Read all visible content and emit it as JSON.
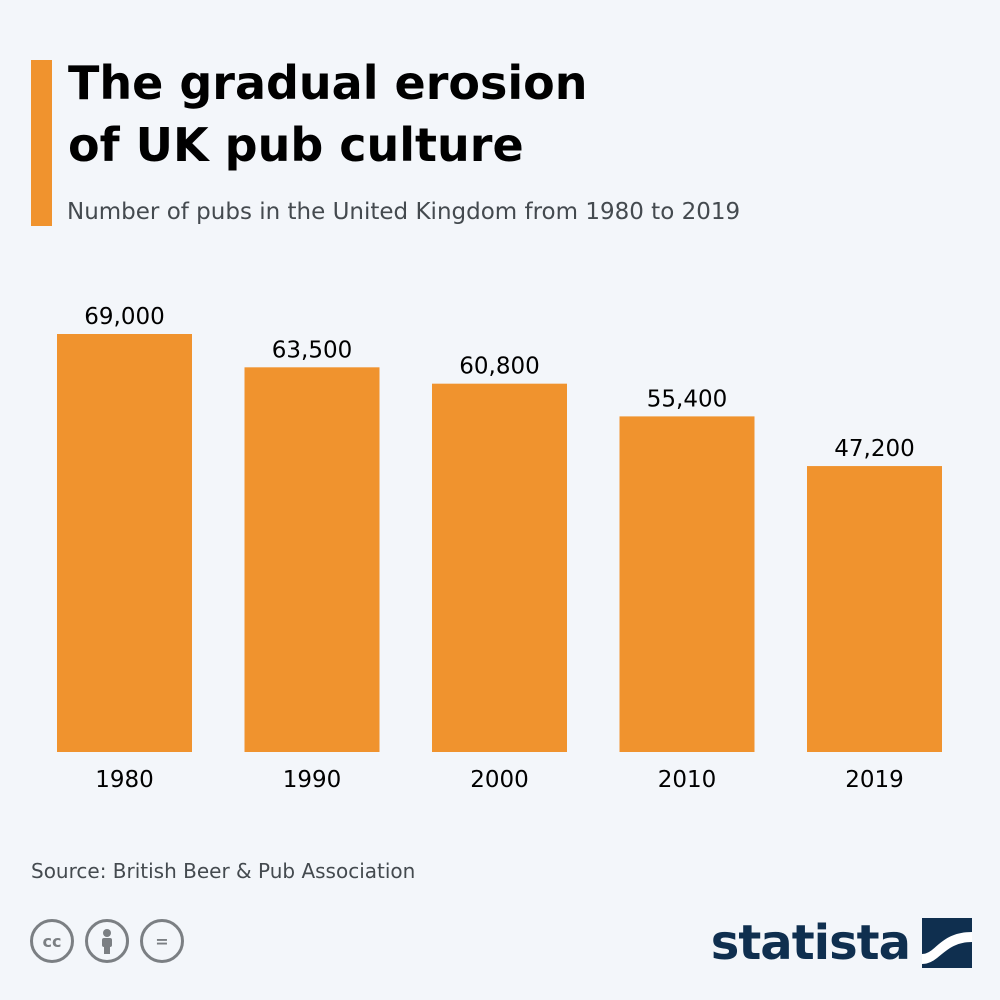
{
  "colors": {
    "accent": "#f0932e",
    "brand": "#0f2f4f",
    "text": "#000000",
    "muted": "#444a4f"
  },
  "header": {
    "title_line1": "The gradual erosion",
    "title_line2": "of UK pub culture",
    "subtitle": "Number of pubs in the United Kingdom from 1980 to 2019"
  },
  "chart_data": {
    "type": "bar",
    "categories": [
      "1980",
      "1990",
      "2000",
      "2010",
      "2019"
    ],
    "values": [
      69000,
      63500,
      60800,
      55400,
      47200
    ],
    "value_labels": [
      "69,000",
      "63,500",
      "60,800",
      "55,400",
      "47,200"
    ],
    "ylim": [
      0,
      69000
    ],
    "grid": false,
    "bar_color": "#f0932e"
  },
  "footer": {
    "source": "Source: British Beer & Pub Association",
    "license_icons": [
      "cc-icon",
      "by-icon",
      "nd-icon"
    ],
    "license_glyphs": [
      "cc",
      "=",
      "="
    ],
    "brand": "statista"
  }
}
